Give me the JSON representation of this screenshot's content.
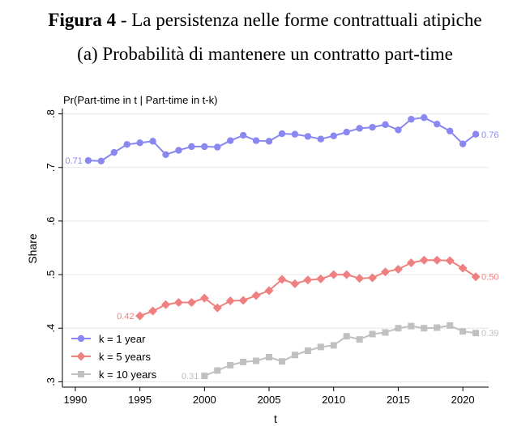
{
  "figure": {
    "label": "Figura 4",
    "caption": " - La persistenza nelle forme contrattuali atipiche",
    "subtitle": "(a) Probabilità di mantenere un contratto part-time"
  },
  "chart_data": {
    "type": "line",
    "title": "Pr(Part-time in t | Part-time in t-k)",
    "xlabel": "t",
    "ylabel": "Share",
    "xlim": [
      1989,
      2022
    ],
    "ylim": [
      0.29,
      0.81
    ],
    "x_ticks": [
      1990,
      1995,
      2000,
      2005,
      2010,
      2015,
      2020
    ],
    "x_tick_labels": [
      "1990",
      "1995",
      "2000",
      "2005",
      "2010",
      "2015",
      "2020"
    ],
    "y_ticks": [
      0.3,
      0.4,
      0.5,
      0.6,
      0.7,
      0.8
    ],
    "y_tick_labels": [
      ".3",
      ".4",
      ".5",
      ".6",
      ".7",
      ".8"
    ],
    "grid": true,
    "legend_position": "bottom-left",
    "series": [
      {
        "name": "k = 1 year",
        "color": "#8a88f0",
        "marker": "circle",
        "start_label": "0.71",
        "end_label": "0.76",
        "x": [
          1991,
          1992,
          1993,
          1994,
          1995,
          1996,
          1997,
          1998,
          1999,
          2000,
          2001,
          2002,
          2003,
          2004,
          2005,
          2006,
          2007,
          2008,
          2009,
          2010,
          2011,
          2012,
          2013,
          2014,
          2015,
          2016,
          2017,
          2018,
          2019,
          2020,
          2021
        ],
        "values": [
          0.713,
          0.712,
          0.728,
          0.743,
          0.746,
          0.749,
          0.724,
          0.732,
          0.739,
          0.739,
          0.738,
          0.75,
          0.76,
          0.75,
          0.749,
          0.763,
          0.762,
          0.758,
          0.753,
          0.759,
          0.766,
          0.773,
          0.775,
          0.78,
          0.77,
          0.79,
          0.793,
          0.781,
          0.768,
          0.744,
          0.762
        ]
      },
      {
        "name": "k = 5 years",
        "color": "#f08080",
        "marker": "diamond",
        "start_label": "0.42",
        "end_label": "0.50",
        "x": [
          1995,
          1996,
          1997,
          1998,
          1999,
          2000,
          2001,
          2002,
          2003,
          2004,
          2005,
          2006,
          2007,
          2008,
          2009,
          2010,
          2011,
          2012,
          2013,
          2014,
          2015,
          2016,
          2017,
          2018,
          2019,
          2020,
          2021
        ],
        "values": [
          0.423,
          0.432,
          0.444,
          0.448,
          0.448,
          0.456,
          0.438,
          0.451,
          0.452,
          0.461,
          0.47,
          0.491,
          0.483,
          0.49,
          0.492,
          0.5,
          0.5,
          0.493,
          0.494,
          0.505,
          0.51,
          0.522,
          0.527,
          0.527,
          0.526,
          0.512,
          0.496
        ]
      },
      {
        "name": "k = 10 years",
        "color": "#c0c0c0",
        "marker": "square",
        "start_label": "0.31",
        "end_label": "0.39",
        "x": [
          2000,
          2001,
          2002,
          2003,
          2004,
          2005,
          2006,
          2007,
          2008,
          2009,
          2010,
          2011,
          2012,
          2013,
          2014,
          2015,
          2016,
          2017,
          2018,
          2019,
          2020,
          2021
        ],
        "values": [
          0.311,
          0.321,
          0.331,
          0.337,
          0.339,
          0.346,
          0.338,
          0.35,
          0.358,
          0.365,
          0.368,
          0.385,
          0.379,
          0.389,
          0.392,
          0.4,
          0.404,
          0.4,
          0.401,
          0.405,
          0.394,
          0.391
        ]
      }
    ]
  }
}
